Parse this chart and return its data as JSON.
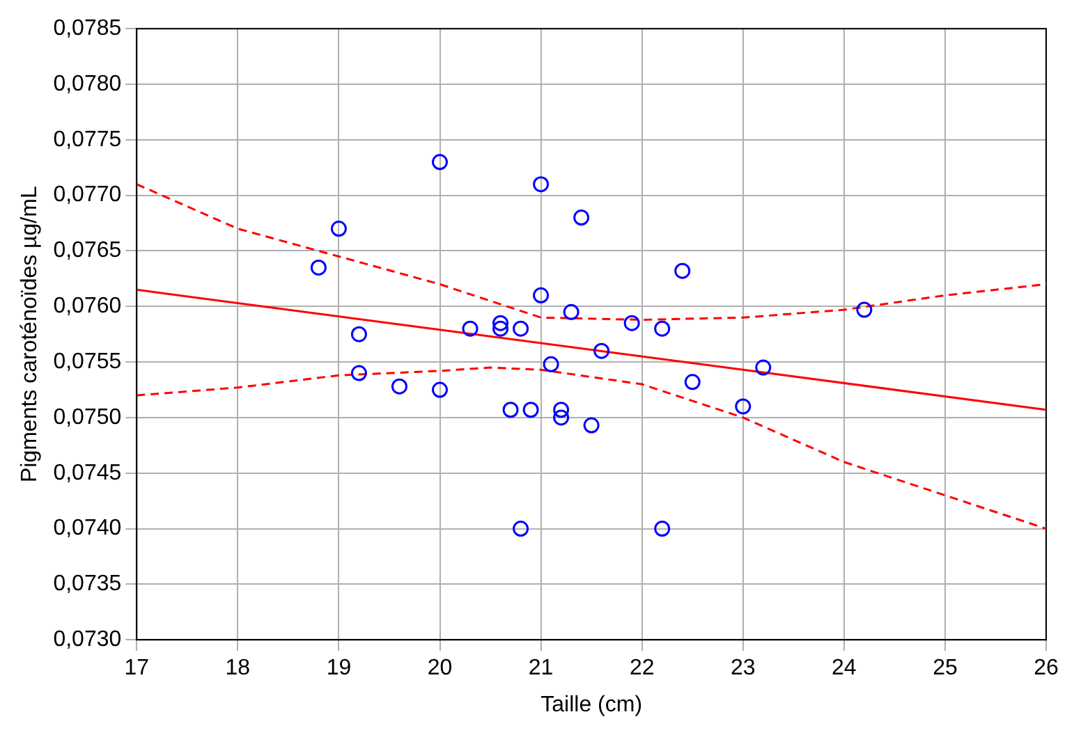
{
  "chart_data": {
    "type": "scatter",
    "xlabel": "Taille (cm)",
    "ylabel": "Pigments caroténoïdes µg/mL",
    "xlim": [
      17,
      26
    ],
    "xticks": [
      17,
      18,
      19,
      20,
      21,
      22,
      23,
      24,
      25,
      26
    ],
    "ylim": [
      0.073,
      0.0785
    ],
    "yticks": [
      {
        "value": 0.073,
        "label": "0,0730"
      },
      {
        "value": 0.0735,
        "label": "0,0735"
      },
      {
        "value": 0.074,
        "label": "0,0740"
      },
      {
        "value": 0.0745,
        "label": "0,0745"
      },
      {
        "value": 0.075,
        "label": "0,0750"
      },
      {
        "value": 0.0755,
        "label": "0,0755"
      },
      {
        "value": 0.076,
        "label": "0,0760"
      },
      {
        "value": 0.0765,
        "label": "0,0765"
      },
      {
        "value": 0.077,
        "label": "0,0770"
      },
      {
        "value": 0.0775,
        "label": "0,0775"
      },
      {
        "value": 0.078,
        "label": "0,0780"
      },
      {
        "value": 0.0785,
        "label": "0,0785"
      }
    ],
    "grid": true,
    "legend": false,
    "series": [
      {
        "type": "scatter",
        "color": "#0000ff",
        "marker": "circle",
        "x": [
          18.8,
          19.0,
          19.2,
          19.2,
          19.6,
          20.0,
          20.0,
          20.3,
          20.6,
          20.6,
          20.8,
          20.7,
          20.9,
          20.8,
          21.0,
          21.0,
          21.1,
          21.2,
          21.2,
          21.3,
          21.4,
          21.5,
          21.6,
          21.9,
          22.2,
          22.2,
          22.4,
          22.5,
          23.0,
          23.2,
          24.2
        ],
        "values": [
          0.07635,
          0.0767,
          0.07575,
          0.0754,
          0.07528,
          0.0773,
          0.07525,
          0.0758,
          0.07585,
          0.0758,
          0.0758,
          0.07507,
          0.07507,
          0.074,
          0.0771,
          0.0761,
          0.07548,
          0.07507,
          0.075,
          0.07595,
          0.0768,
          0.07493,
          0.0756,
          0.07585,
          0.0758,
          0.074,
          0.07632,
          0.07532,
          0.0751,
          0.07545,
          0.07597
        ]
      },
      {
        "type": "line",
        "color": "#ff0000",
        "marker": "none",
        "line_style": "solid",
        "x": [
          17,
          26
        ],
        "values": [
          0.07615,
          0.07507
        ]
      },
      {
        "type": "line",
        "color": "#ff0000",
        "marker": "none",
        "line_style": "dashed",
        "x": [
          17,
          18,
          19,
          20,
          20.5,
          21,
          22,
          23,
          24,
          25,
          26
        ],
        "values": [
          0.0771,
          0.0767,
          0.07645,
          0.0762,
          0.07605,
          0.0759,
          0.07588,
          0.0759,
          0.07597,
          0.0761,
          0.0762
        ]
      },
      {
        "type": "line",
        "color": "#ff0000",
        "marker": "none",
        "line_style": "dashed",
        "x": [
          17,
          18,
          19,
          20,
          20.5,
          21,
          22,
          23,
          24,
          25,
          26
        ],
        "values": [
          0.0752,
          0.07527,
          0.07538,
          0.07542,
          0.07545,
          0.07543,
          0.0753,
          0.075,
          0.0746,
          0.0743,
          0.074
        ]
      }
    ]
  }
}
